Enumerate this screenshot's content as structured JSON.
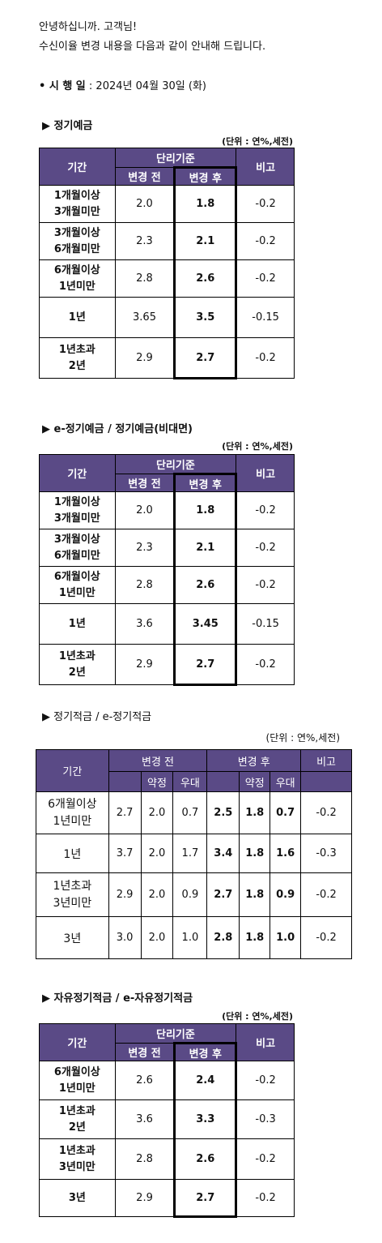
{
  "intro": {
    "line1": "안녕하십니까. 고객님!",
    "line2": "수신이율 변경 내용을 다음과 같이 안내해 드립니다."
  },
  "date": {
    "label": "• 시 행 일",
    "value": " : 2024년 04월 30일 (화)"
  },
  "headers": {
    "period": "기간",
    "simple": "단리기준",
    "before": "변경 전",
    "after": "변경 후",
    "note": "비고",
    "agreed": "약정",
    "bonus": "우대"
  },
  "sections": [
    {
      "title": "▶  정기예금",
      "unit": "(단위 : 연%,세전)",
      "rows": [
        {
          "period": [
            "1개월이상",
            "3개월미만"
          ],
          "before": "2.0",
          "after": "1.8",
          "note": "-0.2"
        },
        {
          "period": [
            "3개월이상",
            "6개월미만"
          ],
          "before": "2.3",
          "after": "2.1",
          "note": "-0.2"
        },
        {
          "period": [
            "6개월이상",
            "1년미만"
          ],
          "before": "2.8",
          "after": "2.6",
          "note": "-0.2"
        },
        {
          "period": [
            "1년"
          ],
          "before": "3.65",
          "after": "3.5",
          "note": "-0.15"
        },
        {
          "period": [
            "1년초과",
            "2년"
          ],
          "before": "2.9",
          "after": "2.7",
          "note": "-0.2"
        }
      ]
    },
    {
      "title": "▶  e-정기예금 / 정기예금(비대면)",
      "unit": "(단위 : 연%,세전)",
      "rows": [
        {
          "period": [
            "1개월이상",
            "3개월미만"
          ],
          "before": "2.0",
          "after": "1.8",
          "note": "-0.2"
        },
        {
          "period": [
            "3개월이상",
            "6개월미만"
          ],
          "before": "2.3",
          "after": "2.1",
          "note": "-0.2"
        },
        {
          "period": [
            "6개월이상",
            "1년미만"
          ],
          "before": "2.8",
          "after": "2.6",
          "note": "-0.2"
        },
        {
          "period": [
            "1년"
          ],
          "before": "3.6",
          "after": "3.45",
          "note": "-0.15"
        },
        {
          "period": [
            "1년초과",
            "2년"
          ],
          "before": "2.9",
          "after": "2.7",
          "note": "-0.2"
        }
      ]
    },
    {
      "title": "▶ 정기적금 / e-정기적금",
      "unit": "(단위 : 연%,세전)",
      "rows": [
        {
          "period": [
            "6개월이상",
            "1년미만"
          ],
          "before": [
            "2.7",
            "2.0",
            "0.7"
          ],
          "after": [
            "2.5",
            "1.8",
            "0.7"
          ],
          "note": "-0.2"
        },
        {
          "period": [
            "1년"
          ],
          "before": [
            "3.7",
            "2.0",
            "1.7"
          ],
          "after": [
            "3.4",
            "1.8",
            "1.6"
          ],
          "note": "-0.3"
        },
        {
          "period": [
            "1년초과",
            "3년미만"
          ],
          "before": [
            "2.9",
            "2.0",
            "0.9"
          ],
          "after": [
            "2.7",
            "1.8",
            "0.9"
          ],
          "note": "-0.2"
        },
        {
          "period": [
            "3년"
          ],
          "before": [
            "3.0",
            "2.0",
            "1.0"
          ],
          "after": [
            "2.8",
            "1.8",
            "1.0"
          ],
          "note": "-0.2"
        }
      ]
    },
    {
      "title": "▶ 자유정기적금 / e-자유정기적금",
      "unit": "(단위 : 연%,세전)",
      "rows": [
        {
          "period": [
            "6개월이상",
            "1년미만"
          ],
          "before": "2.6",
          "after": "2.4",
          "note": "-0.2"
        },
        {
          "period": [
            "1년초과",
            "2년"
          ],
          "before": "3.6",
          "after": "3.3",
          "note": "-0.3"
        },
        {
          "period": [
            "1년초과",
            "3년미만"
          ],
          "before": "2.8",
          "after": "2.6",
          "note": "-0.2"
        },
        {
          "period": [
            "3년"
          ],
          "before": "2.9",
          "after": "2.7",
          "note": "-0.2"
        }
      ]
    }
  ]
}
